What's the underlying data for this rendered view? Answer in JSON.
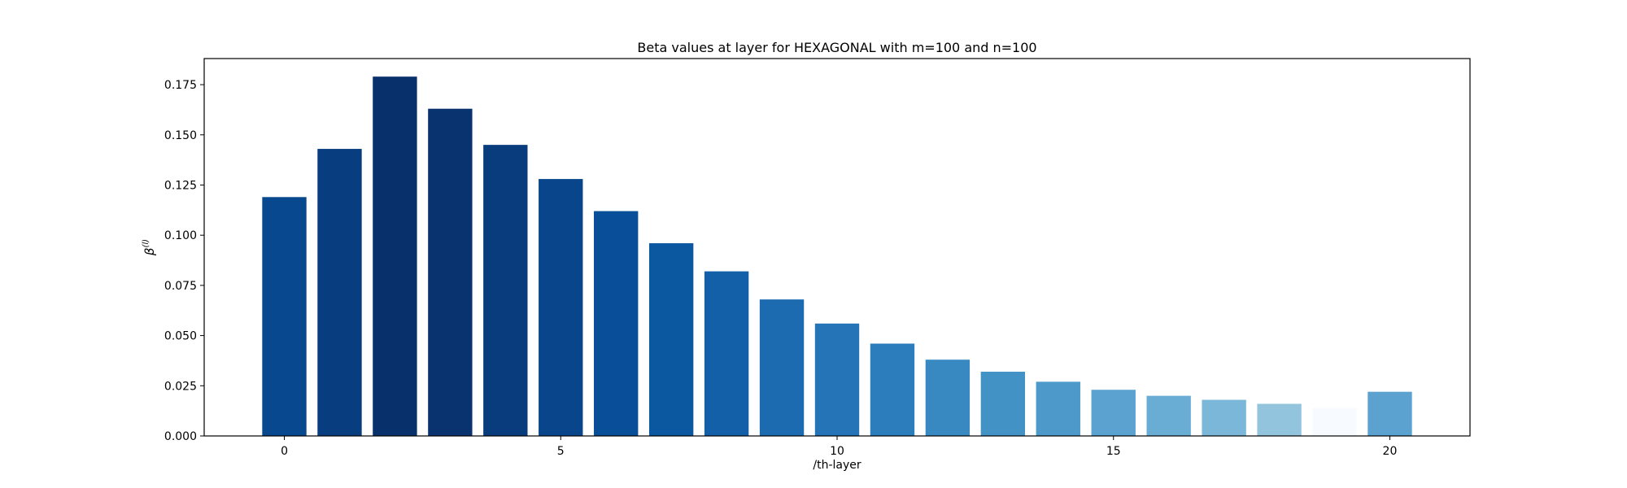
{
  "chart_data": {
    "type": "bar",
    "title": "Beta values at layer for HEXAGONAL with m=100 and n=100",
    "xlabel": "/th-layer",
    "ylabel_base": "β",
    "ylabel_sup": "(l)",
    "categories": [
      0,
      1,
      2,
      3,
      4,
      5,
      6,
      7,
      8,
      9,
      10,
      11,
      12,
      13,
      14,
      15,
      16,
      17,
      18,
      19,
      20
    ],
    "values": [
      0.119,
      0.143,
      0.179,
      0.163,
      0.145,
      0.128,
      0.112,
      0.096,
      0.082,
      0.068,
      0.056,
      0.046,
      0.038,
      0.032,
      0.027,
      0.023,
      0.02,
      0.018,
      0.016,
      0.014,
      0.022
    ],
    "colors": [
      "#08488e",
      "#083d7f",
      "#08306b",
      "#08336f",
      "#083c7d",
      "#08458a",
      "#084e98",
      "#0b57a0",
      "#1460a8",
      "#1c6ab0",
      "#2474b7",
      "#2c7dbb",
      "#3888c1",
      "#4292c6",
      "#4d99ca",
      "#5ba2d0",
      "#69add5",
      "#7ab7d9",
      "#92c4de",
      "#f7fbff",
      "#5ba2d0"
    ],
    "xlim": [
      -1.45,
      21.45
    ],
    "ylim": [
      0,
      0.188
    ],
    "xticks": [
      0,
      5,
      10,
      15,
      20
    ],
    "yticks": [
      "0.000",
      "0.025",
      "0.050",
      "0.075",
      "0.100",
      "0.125",
      "0.150",
      "0.175"
    ],
    "grid": false,
    "legend": "none"
  }
}
